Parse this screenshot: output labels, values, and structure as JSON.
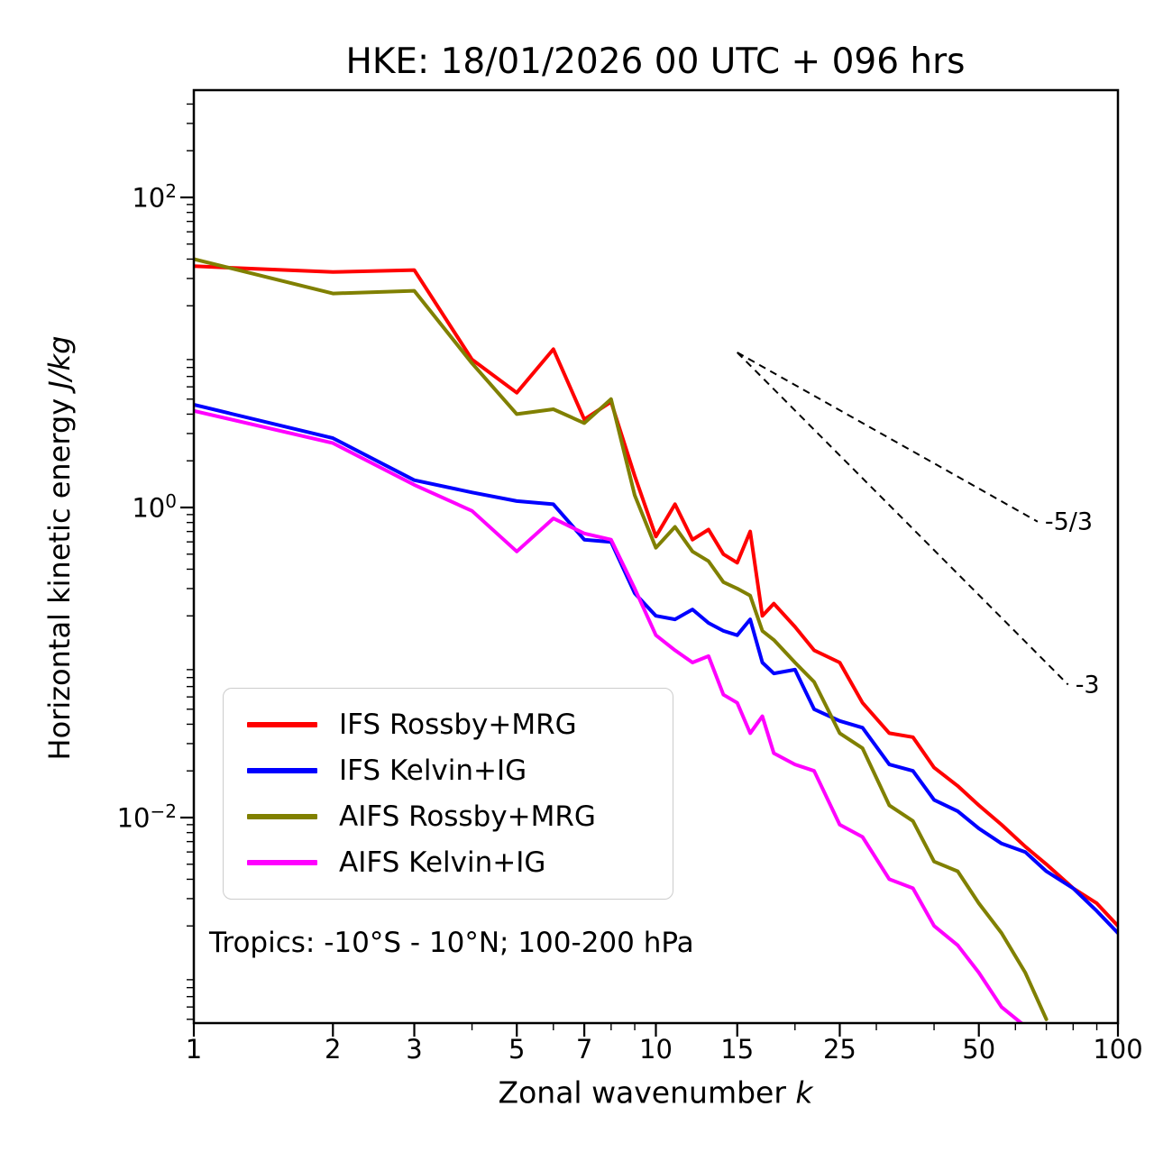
{
  "chart_data": {
    "type": "line",
    "title": "HKE: 18/01/2026 00 UTC + 096 hrs",
    "xlabel": "Zonal wavenumber k",
    "ylabel": "Horizontal kinetic energy J/kg",
    "xlabel_text": "Zonal wavenumber ",
    "xlabel_math": "k",
    "ylabel_text": "Horizontal kinetic energy ",
    "ylabel_math": "J/kg",
    "annotation": "Tropics: -10°S - 10°N; 100-200 hPa",
    "x_scale": "log",
    "y_scale": "log",
    "xlim": [
      1,
      100
    ],
    "ylim": [
      0.00047,
      490
    ],
    "x_ticks": [
      1,
      2,
      3,
      5,
      7,
      10,
      15,
      25,
      50,
      100
    ],
    "x_minor_ticks": [
      4,
      6,
      8,
      9,
      20,
      30,
      40,
      60,
      70,
      80,
      90
    ],
    "y_tick_exponents": [
      2,
      0,
      -2
    ],
    "legend_position": "lower-left",
    "grid": false,
    "x": [
      1,
      2,
      3,
      4,
      5,
      6,
      7,
      8,
      9,
      10,
      11,
      12,
      13,
      14,
      15,
      16,
      17,
      18,
      20,
      22,
      25,
      28,
      32,
      36,
      40,
      45,
      50,
      56,
      63,
      70,
      80,
      90,
      100
    ],
    "series": [
      {
        "name": "IFS Rossby+MRG",
        "color": "#ff0000",
        "values": [
          36,
          33,
          34,
          9.0,
          5.5,
          10.5,
          3.7,
          4.8,
          1.6,
          0.65,
          1.05,
          0.62,
          0.72,
          0.5,
          0.44,
          0.7,
          0.2,
          0.24,
          0.17,
          0.12,
          0.1,
          0.055,
          0.035,
          0.033,
          0.021,
          0.016,
          0.012,
          0.009,
          0.0065,
          0.005,
          0.0035,
          0.0028,
          0.002
        ]
      },
      {
        "name": "IFS Kelvin+IG",
        "color": "#0000ff",
        "values": [
          4.6,
          2.8,
          1.5,
          1.25,
          1.1,
          1.05,
          0.62,
          0.6,
          0.28,
          0.2,
          0.19,
          0.22,
          0.18,
          0.16,
          0.15,
          0.19,
          0.1,
          0.085,
          0.09,
          0.05,
          0.042,
          0.038,
          0.022,
          0.02,
          0.013,
          0.011,
          0.0085,
          0.0068,
          0.006,
          0.0045,
          0.0035,
          0.0025,
          0.0018
        ]
      },
      {
        "name": "AIFS Rossby+MRG",
        "color": "#808000",
        "values": [
          40,
          24,
          25,
          8.5,
          4.0,
          4.3,
          3.5,
          5.0,
          1.2,
          0.55,
          0.75,
          0.52,
          0.45,
          0.33,
          0.3,
          0.27,
          0.16,
          0.14,
          0.1,
          0.075,
          0.035,
          0.028,
          0.012,
          0.0095,
          0.0052,
          0.0045,
          0.0028,
          0.0018,
          0.001,
          0.0005,
          null,
          null,
          null
        ]
      },
      {
        "name": "AIFS Kelvin+IG",
        "color": "#ff00ff",
        "values": [
          4.2,
          2.6,
          1.4,
          0.95,
          0.52,
          0.85,
          0.68,
          0.62,
          0.3,
          0.15,
          0.12,
          0.1,
          0.11,
          0.062,
          0.055,
          0.035,
          0.045,
          0.026,
          0.022,
          0.02,
          0.009,
          0.0075,
          0.004,
          0.0035,
          0.002,
          0.0015,
          0.001,
          0.0006,
          0.00045,
          null,
          null,
          null,
          null
        ]
      }
    ],
    "reference_lines": [
      {
        "label": "-5/3",
        "points": [
          [
            15,
            10
          ],
          [
            67,
            0.81
          ]
        ]
      },
      {
        "label": "-3",
        "points": [
          [
            15,
            10
          ],
          [
            78,
            0.072
          ]
        ]
      }
    ]
  }
}
